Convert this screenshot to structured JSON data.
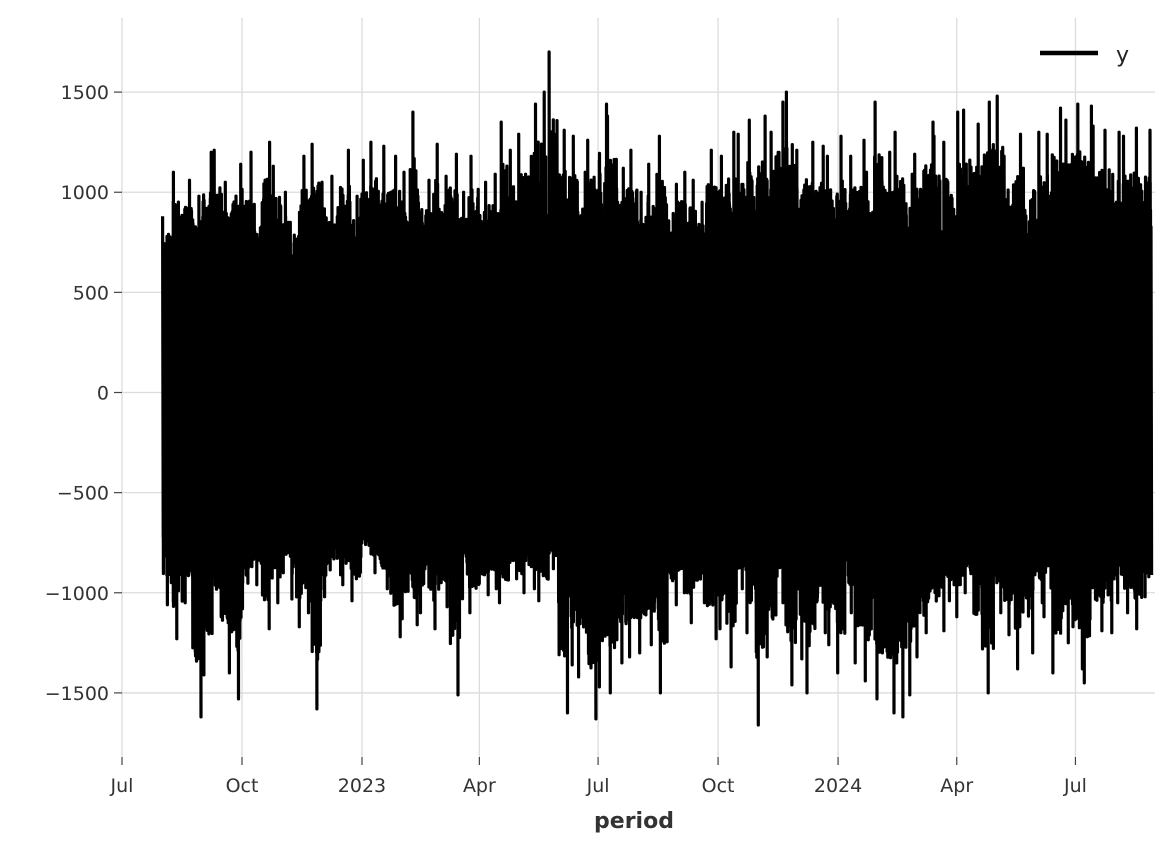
{
  "chart_data": {
    "type": "line",
    "title": "",
    "xlabel": "period",
    "ylabel": "",
    "x_start": "2022-08-01",
    "x_end": "2024-08-28",
    "xlim": [
      "2022-07-01",
      "2024-08-31"
    ],
    "ylim": [
      -1820,
      1870
    ],
    "grid": true,
    "legend_position": "top-right",
    "x_ticks": [
      {
        "date": "2022-07-01",
        "label": "Jul"
      },
      {
        "date": "2022-10-01",
        "label": "Oct"
      },
      {
        "date": "2023-01-01",
        "label": "2023"
      },
      {
        "date": "2023-04-01",
        "label": "Apr"
      },
      {
        "date": "2023-07-01",
        "label": "Jul"
      },
      {
        "date": "2023-10-01",
        "label": "Oct"
      },
      {
        "date": "2024-01-01",
        "label": "2024"
      },
      {
        "date": "2024-04-01",
        "label": "Apr"
      },
      {
        "date": "2024-07-01",
        "label": "Jul"
      }
    ],
    "y_ticks": [
      {
        "value": 1500,
        "label": "1500"
      },
      {
        "value": 1000,
        "label": "1000"
      },
      {
        "value": 500,
        "label": "500"
      },
      {
        "value": 0,
        "label": "0"
      },
      {
        "value": -500,
        "label": "−500"
      },
      {
        "value": -1000,
        "label": "−1000"
      },
      {
        "value": -1500,
        "label": "−1500"
      }
    ],
    "series": [
      {
        "name": "y",
        "color": "#000000",
        "daily_max": [
          880,
          1100,
          1060,
          980,
          1200,
          1210,
          1050,
          1140,
          1200,
          940,
          1250,
          1130,
          1000,
          900,
          1180,
          1240,
          1050,
          1080,
          1210,
          980,
          1160,
          1250,
          1230,
          1180,
          1100,
          1400,
          1060,
          1240,
          1080,
          1190,
          1000,
          1180,
          1050,
          1090,
          1350,
          1210,
          1290,
          1440,
          1500,
          1700,
          1310,
          1280,
          1100,
          1260,
          1440,
          1380,
          1120,
          1210,
          1000,
          1140,
          1280,
          1040,
          1100,
          1060,
          950,
          1210,
          1180,
          1300,
          1290,
          1360,
          1380,
          1300,
          1450,
          1500,
          1210,
          1250,
          1230,
          1180,
          1280,
          1180,
          1260,
          1100,
          1450,
          1200,
          1300,
          1090,
          1190,
          1350,
          1280,
          1250,
          1400,
          1410,
          1340,
          1450,
          1480,
          1180,
          1290,
          1120,
          1300,
          1290,
          1420,
          1360,
          1440,
          1430,
          1330,
          1310,
          1300,
          1280,
          1320,
          1310
        ],
        "daily_min": [
          -1060,
          -1230,
          -1050,
          -1620,
          -1410,
          -1120,
          -1400,
          -1530,
          -1080,
          -960,
          -1180,
          -1050,
          -900,
          -1170,
          -1100,
          -1580,
          -1020,
          -910,
          -960,
          -1040,
          -820,
          -900,
          -980,
          -1220,
          -1130,
          -1160,
          -1100,
          -1180,
          -1070,
          -1510,
          -1030,
          -1100,
          -1010,
          -980,
          -1050,
          -930,
          -1000,
          -980,
          -1040,
          -880,
          -1600,
          -1360,
          -1420,
          -1630,
          -1470,
          -1500,
          -1350,
          -1320,
          -1300,
          -1260,
          -1500,
          -1060,
          -1000,
          -1150,
          -1050,
          -1230,
          -1180,
          -1370,
          -980,
          -1200,
          -1660,
          -1320,
          -1050,
          -1460,
          -1330,
          -1500,
          -1200,
          -1260,
          -1400,
          -1100,
          -1350,
          -1440,
          -1530,
          -1600,
          -1620,
          -1510,
          -1320,
          -1200,
          -1190,
          -1040,
          -1120,
          -1000,
          -1280,
          -1500,
          -1100,
          -1210,
          -1380,
          -1300,
          -1050,
          -1120,
          -1400,
          -1250,
          -1380,
          -1450,
          -1190,
          -1200,
          -1050,
          -1100,
          -1180,
          -1020
        ]
      }
    ]
  }
}
